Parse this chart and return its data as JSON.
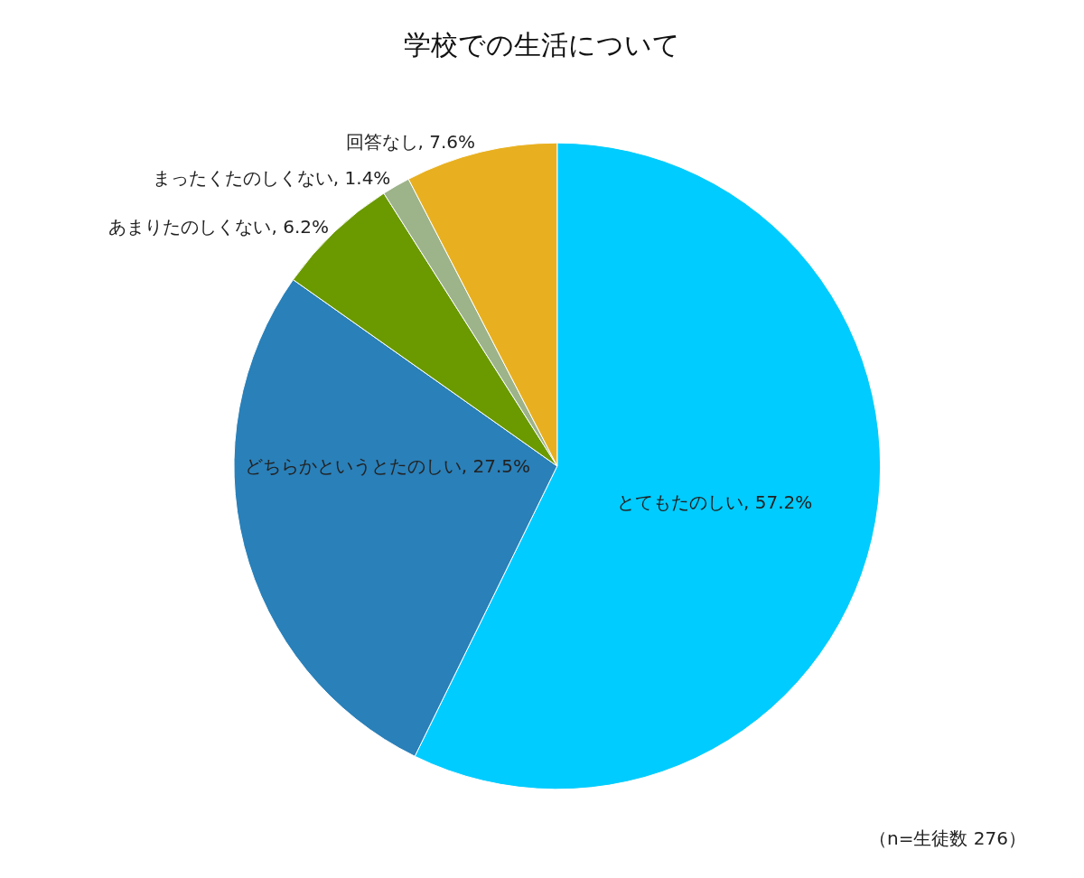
{
  "chart_data": {
    "type": "pie",
    "title": "学校での生活について",
    "categories": [
      "とてもたのしい",
      "どちらかというとたのしい",
      "あまりたのしくない",
      "まったくたのしくない",
      "回答なし"
    ],
    "values": [
      57.2,
      27.5,
      6.2,
      1.4,
      7.6
    ],
    "value_labels": [
      "57.2%",
      "27.5%",
      "6.2%",
      "1.4%",
      "7.6%"
    ],
    "colors": [
      "#00ccff",
      "#2a80b9",
      "#6a9a00",
      "#9db38a",
      "#e8b020"
    ],
    "legend": false,
    "annotations": [
      "（n=生徒数 276）"
    ]
  }
}
